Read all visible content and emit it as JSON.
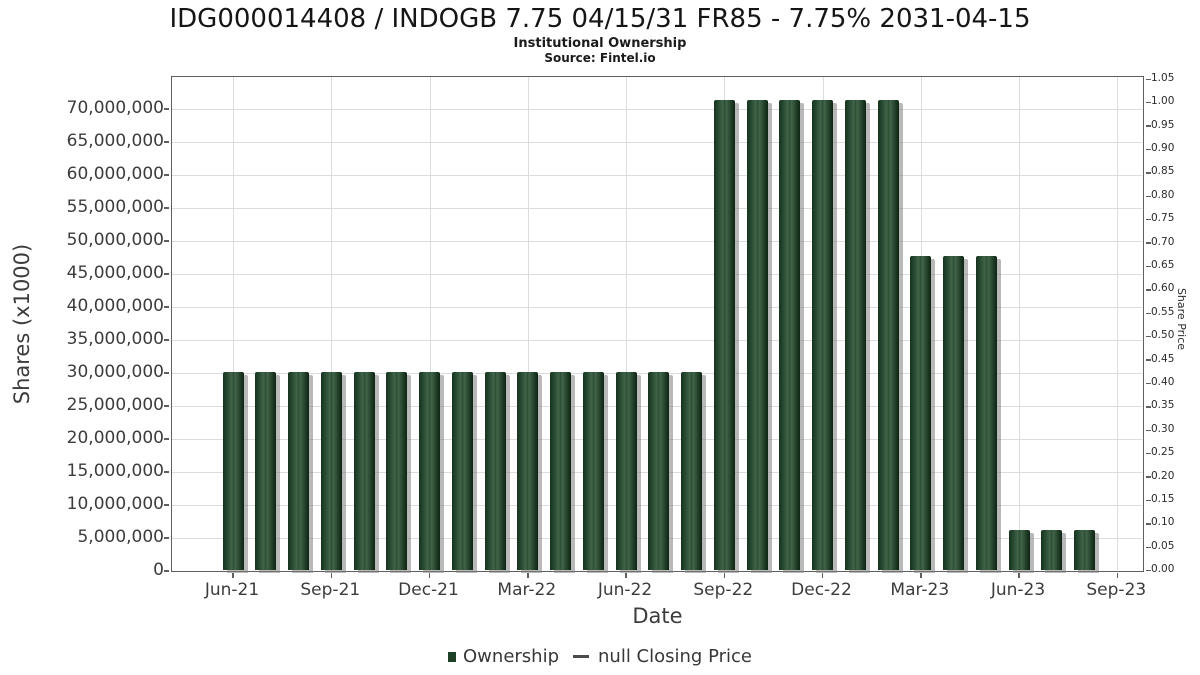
{
  "page": {
    "title": "IDG000014408 / INDOGB 7.75 04/15/31 FR85 - 7.75% 2031-04-15",
    "subtitle": "Institutional Ownership",
    "source": "Source: Fintel.io"
  },
  "chart_data": {
    "type": "bar",
    "title": "IDG000014408 / INDOGB 7.75 04/15/31 FR85 - 7.75% 2031-04-15",
    "subtitle": "Institutional Ownership",
    "source": "Source: Fintel.io",
    "xlabel": "Date",
    "ylabel_left": "Shares (x1000)",
    "ylabel_right": "Share Price",
    "grid": true,
    "legend_position": "bottom",
    "categories": [
      "Jun-21",
      "Jul-21",
      "Aug-21",
      "Sep-21",
      "Oct-21",
      "Nov-21",
      "Dec-21",
      "Jan-22",
      "Feb-22",
      "Mar-22",
      "Apr-22",
      "May-22",
      "Jun-22",
      "Jul-22",
      "Aug-22",
      "Sep-22",
      "Oct-22",
      "Nov-22",
      "Dec-22",
      "Jan-23",
      "Feb-23",
      "Mar-23",
      "Apr-23",
      "May-23",
      "Jun-23",
      "Jul-23",
      "Aug-23"
    ],
    "series": [
      {
        "name": "Ownership",
        "type": "bar",
        "color": "#1e4026",
        "values": [
          30000000,
          30000000,
          30000000,
          30000000,
          30000000,
          30000000,
          30000000,
          30000000,
          30000000,
          30000000,
          30000000,
          30000000,
          30000000,
          30000000,
          30000000,
          71200000,
          71200000,
          71200000,
          71200000,
          71200000,
          71200000,
          47600000,
          47600000,
          47600000,
          6100000,
          6100000,
          6100000
        ]
      },
      {
        "name": "null Closing Price",
        "type": "line",
        "color": "#4a4a4a",
        "values": []
      }
    ],
    "y_left_axis": {
      "min": 0,
      "max": 70000000,
      "tick_step": 5000000,
      "tick_labels": [
        "0",
        "5,000,000",
        "10,000,000",
        "15,000,000",
        "20,000,000",
        "25,000,000",
        "30,000,000",
        "35,000,000",
        "40,000,000",
        "45,000,000",
        "50,000,000",
        "55,000,000",
        "60,000,000",
        "65,000,000",
        "70,000,000"
      ]
    },
    "y_right_axis": {
      "min": 0.0,
      "max": 1.05,
      "tick_step": 0.05,
      "tick_labels": [
        "0.00",
        "0.05",
        "0.10",
        "0.15",
        "0.20",
        "0.25",
        "0.30",
        "0.35",
        "0.40",
        "0.45",
        "0.50",
        "0.55",
        "0.60",
        "0.65",
        "0.70",
        "0.75",
        "0.80",
        "0.85",
        "0.90",
        "0.95",
        "1.00",
        "1.05"
      ]
    },
    "x_axis": {
      "tick_labels": [
        "Jun-21",
        "Sep-21",
        "Dec-21",
        "Mar-22",
        "Jun-22",
        "Sep-22",
        "Dec-22",
        "Mar-23",
        "Jun-23",
        "Sep-23"
      ],
      "tick_month_indices": [
        0,
        3,
        6,
        9,
        12,
        15,
        18,
        21,
        24,
        27
      ]
    }
  },
  "legend": {
    "items": [
      {
        "label": "Ownership",
        "swatch": "square",
        "color": "#1e4026"
      },
      {
        "label": "null Closing Price",
        "swatch": "line",
        "color": "#4a4a4a"
      }
    ]
  }
}
